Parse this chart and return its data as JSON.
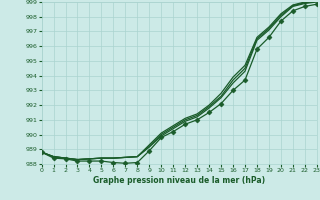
{
  "xlabel": "Graphe pression niveau de la mer (hPa)",
  "ylim": [
    988,
    999
  ],
  "xlim": [
    0,
    23
  ],
  "yticks": [
    988,
    989,
    990,
    991,
    992,
    993,
    994,
    995,
    996,
    997,
    998,
    999
  ],
  "xticks": [
    0,
    1,
    2,
    3,
    4,
    5,
    6,
    7,
    8,
    9,
    10,
    11,
    12,
    13,
    14,
    15,
    16,
    17,
    18,
    19,
    20,
    21,
    22,
    23
  ],
  "bg_color": "#cceae7",
  "grid_color": "#aad4d0",
  "line_color": "#1a5c2a",
  "line_up1": [
    988.8,
    988.5,
    988.4,
    988.3,
    988.35,
    988.4,
    988.4,
    988.45,
    988.5,
    989.3,
    990.1,
    990.6,
    991.1,
    991.4,
    992.0,
    992.8,
    993.9,
    994.7,
    996.6,
    997.3,
    998.2,
    998.8,
    999.0,
    999.1
  ],
  "line_up2": [
    988.8,
    988.5,
    988.4,
    988.3,
    988.35,
    988.4,
    988.4,
    988.45,
    988.5,
    989.2,
    990.0,
    990.5,
    991.0,
    991.3,
    991.9,
    992.6,
    993.7,
    994.5,
    996.5,
    997.2,
    998.1,
    998.75,
    998.95,
    999.05
  ],
  "line_up3": [
    988.8,
    988.5,
    988.4,
    988.3,
    988.35,
    988.4,
    988.4,
    988.45,
    988.5,
    989.15,
    989.9,
    990.4,
    990.9,
    991.2,
    991.8,
    992.5,
    993.5,
    994.3,
    996.4,
    997.1,
    998.0,
    998.7,
    998.9,
    999.0
  ],
  "line_low": [
    988.8,
    988.4,
    988.35,
    988.2,
    988.2,
    988.2,
    988.1,
    988.05,
    988.1,
    988.9,
    989.8,
    990.2,
    990.7,
    991.0,
    991.5,
    992.1,
    993.0,
    993.7,
    995.8,
    996.6,
    997.7,
    998.4,
    998.7,
    998.85
  ]
}
